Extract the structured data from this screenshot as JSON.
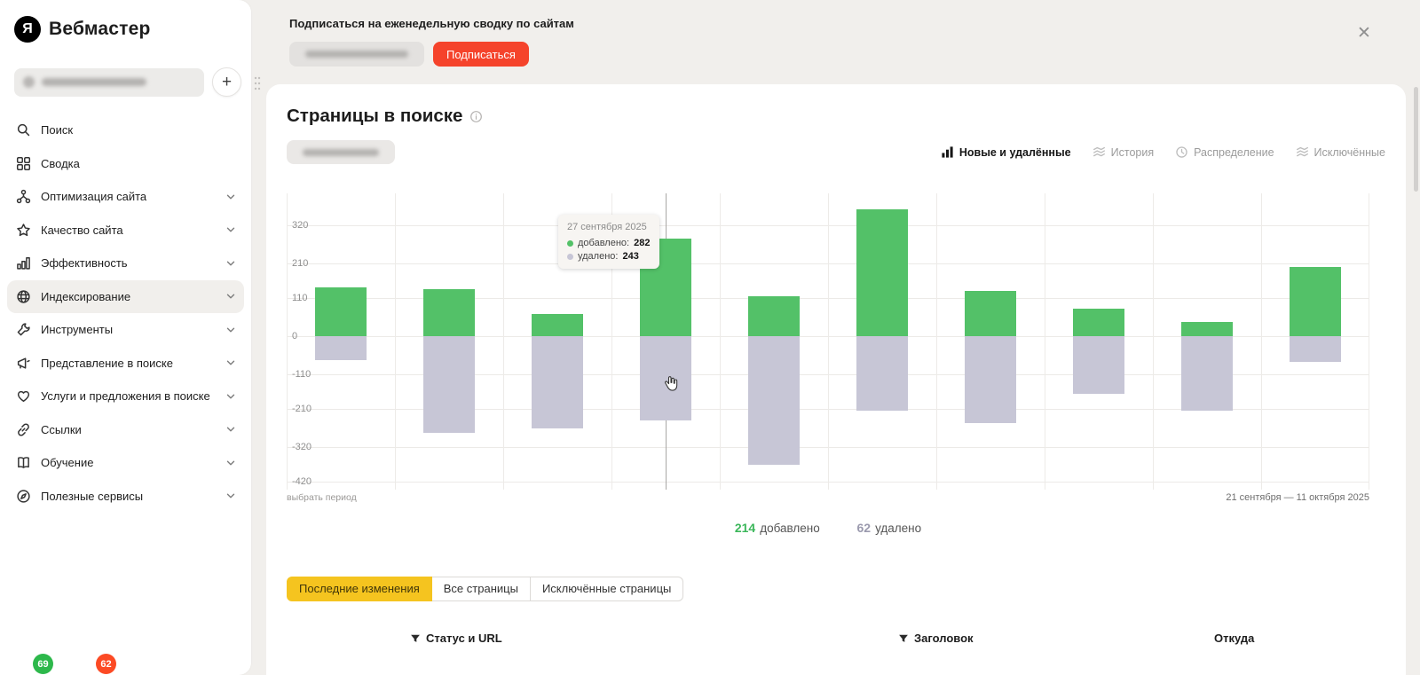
{
  "sidebar": {
    "logo_letter": "Я",
    "logo_text": "Вебмастер",
    "add_button_label": "+",
    "items": [
      {
        "key": "search",
        "label": "Поиск",
        "icon": "search",
        "chevron": false
      },
      {
        "key": "summary",
        "label": "Сводка",
        "icon": "grid",
        "chevron": false
      },
      {
        "key": "site-optimization",
        "label": "Оптимизация сайта",
        "icon": "sitemap",
        "chevron": true
      },
      {
        "key": "site-quality",
        "label": "Качество сайта",
        "icon": "star",
        "chevron": true
      },
      {
        "key": "efficiency",
        "label": "Эффективность",
        "icon": "bars",
        "chevron": true
      },
      {
        "key": "indexing",
        "label": "Индексирование",
        "icon": "globe",
        "chevron": true,
        "active": true
      },
      {
        "key": "tools",
        "label": "Инструменты",
        "icon": "wrench",
        "chevron": true
      },
      {
        "key": "search-appearance",
        "label": "Представление в поиске",
        "icon": "megaphone",
        "chevron": true
      },
      {
        "key": "search-offers",
        "label": "Услуги и предложения в поиске",
        "icon": "heart",
        "chevron": true
      },
      {
        "key": "links",
        "label": "Ссылки",
        "icon": "link",
        "chevron": true
      },
      {
        "key": "education",
        "label": "Обучение",
        "icon": "book",
        "chevron": true
      },
      {
        "key": "useful-services",
        "label": "Полезные сервисы",
        "icon": "compass",
        "chevron": true
      }
    ],
    "badges": [
      {
        "value": "69",
        "color": "#2db84b"
      },
      {
        "value": "62",
        "color": "#fc4a24"
      }
    ]
  },
  "banner": {
    "title": "Подписаться на еженедельную сводку по сайтам",
    "button_label": "Подписаться",
    "close_label": "✕"
  },
  "main": {
    "title": "Страницы в поиске",
    "view_tabs": [
      {
        "key": "new-and-removed",
        "label": "Новые и удалённые",
        "icon": "bars-solid",
        "active": true
      },
      {
        "key": "history",
        "label": "История",
        "icon": "layers",
        "active": false
      },
      {
        "key": "distribution",
        "label": "Распределение",
        "icon": "clock",
        "active": false
      },
      {
        "key": "excluded",
        "label": "Исключённые",
        "icon": "layers",
        "active": false
      }
    ],
    "period_link": "выбрать период",
    "period_range": "21 сентября — 11 октября 2025",
    "summary": {
      "added_value": "214",
      "added_label": "добавлено",
      "removed_value": "62",
      "removed_label": "удалено"
    },
    "bottom_tabs": [
      {
        "key": "latest-changes",
        "label": "Последние изменения",
        "active": true
      },
      {
        "key": "all-pages",
        "label": "Все страницы",
        "active": false
      },
      {
        "key": "excluded-pages",
        "label": "Исключённые страницы",
        "active": false
      }
    ],
    "table_headers": [
      {
        "label": "Статус и URL",
        "filter": true
      },
      {
        "label": "Заголовок",
        "filter": true
      },
      {
        "label": "Откуда",
        "filter": false
      }
    ]
  },
  "chart_data": {
    "type": "bar",
    "title": "Страницы в поиске — Новые и удалённые",
    "x_range": "21 сентября — 11 октября 2025",
    "y_ticks": [
      320,
      210,
      110,
      0,
      -110,
      -210,
      -320,
      -420
    ],
    "ylim": [
      -440,
      410
    ],
    "grid": true,
    "series": [
      {
        "name": "добавлено",
        "color": "#53c168",
        "values": [
          140,
          135,
          65,
          282,
          115,
          365,
          130,
          80,
          40,
          200
        ]
      },
      {
        "name": "удалено",
        "color": "#c7c6d6",
        "direction": "down",
        "values": [
          70,
          280,
          265,
          243,
          370,
          215,
          250,
          165,
          215,
          75
        ]
      }
    ],
    "tooltip": {
      "bar_index": 3,
      "date": "27 сентября 2025",
      "added_label": "добавлено:",
      "added": "282",
      "removed_label": "удалено:",
      "removed": "243"
    }
  }
}
